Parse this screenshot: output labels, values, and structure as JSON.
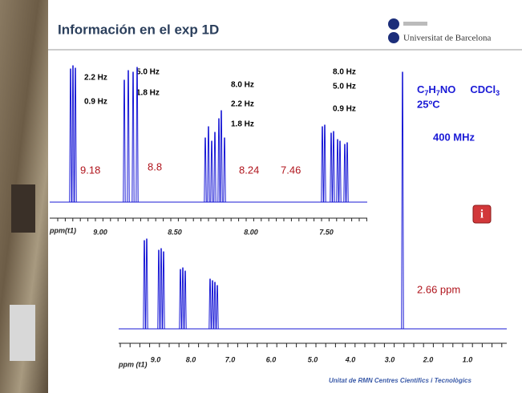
{
  "header": {
    "title": "Información en el exp 1D",
    "logo_text": "Universitat de Barcelona"
  },
  "inset": {
    "coupling_labels": [
      "2.2 Hz",
      "0.9 Hz",
      "5.0 Hz",
      "1.8 Hz",
      "8.0 Hz",
      "2.2 Hz",
      "1.8 Hz",
      "8.0 Hz",
      "5.0 Hz",
      "0.9 Hz"
    ],
    "shift_labels": [
      "9.18",
      "8.8",
      "8.24",
      "7.46"
    ],
    "ticks": [
      "9.00",
      "8.50",
      "8.00",
      "7.50"
    ],
    "axis_label": "ppm(t1)"
  },
  "sample": {
    "formula": [
      "C",
      "7",
      "H",
      "7",
      "NO"
    ],
    "solvent": [
      "CDCl",
      "3"
    ],
    "temperature": "25ºC",
    "field": "400 MHz"
  },
  "main": {
    "ticks": [
      "9.0",
      "8.0",
      "7.0",
      "6.0",
      "5.0",
      "4.0",
      "3.0",
      "2.0",
      "1.0"
    ],
    "axis_label": "ppm (t1)",
    "peak_label": "2.66 ppm"
  },
  "footer": "Unitat de RMN  Centres Científics i Tecnològics"
}
